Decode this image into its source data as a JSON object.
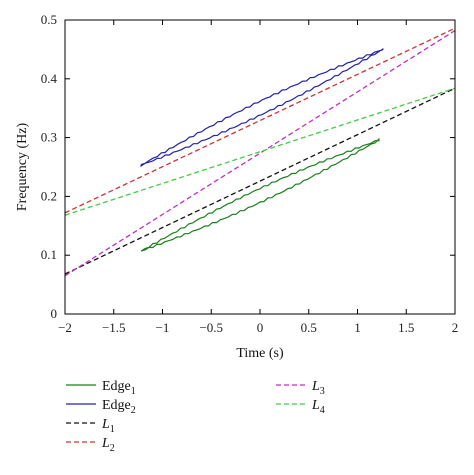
{
  "chart_data": {
    "type": "line",
    "xlabel": "Time (s)",
    "ylabel": "Frequency (Hz)",
    "xlim": [
      -2,
      2
    ],
    "ylim": [
      0,
      0.5
    ],
    "xticks": [
      -2,
      -1.5,
      -1,
      -0.5,
      0,
      0.5,
      1,
      1.5,
      2
    ],
    "yticks": [
      0,
      0.1,
      0.2,
      0.3,
      0.4,
      0.5
    ],
    "xtick_labels": [
      "−2",
      "−1.5",
      "−1",
      "−0.5",
      "0",
      "0.5",
      "1",
      "1.5",
      "2"
    ],
    "ytick_labels": [
      "0",
      "0.1",
      "0.2",
      "0.3",
      "0.4",
      "0.5"
    ],
    "grid": false,
    "legend_position": "below",
    "series": [
      {
        "name": "Edge1",
        "label_main": "Edge",
        "label_sub": "1",
        "italic": false,
        "color": "#1a7f1a",
        "style": "solid",
        "kind": "band",
        "x_start": -1.22,
        "x_end": 1.22,
        "y_start": 0.107,
        "y_end": 0.296,
        "spread": 0.012
      },
      {
        "name": "Edge2",
        "label_main": "Edge",
        "label_sub": "2",
        "italic": false,
        "color": "#2222aa",
        "style": "solid",
        "kind": "band",
        "x_start": -1.22,
        "x_end": 1.26,
        "y_start": 0.253,
        "y_end": 0.45,
        "spread": 0.012
      },
      {
        "name": "L1",
        "label_main": "L",
        "label_sub": "1",
        "italic": true,
        "color": "#111111",
        "style": "dashed",
        "kind": "line",
        "x": [
          -2,
          2
        ],
        "y": [
          0.068,
          0.384
        ]
      },
      {
        "name": "L2",
        "label_main": "L",
        "label_sub": "2",
        "italic": true,
        "color": "#cc3333",
        "style": "dashed",
        "kind": "line",
        "x": [
          -2,
          2
        ],
        "y": [
          0.172,
          0.486
        ]
      },
      {
        "name": "L3",
        "label_main": "L",
        "label_sub": "3",
        "italic": true,
        "color": "#bb33bb",
        "style": "dashed",
        "kind": "line",
        "x": [
          -2,
          2
        ],
        "y": [
          0.065,
          0.482
        ]
      },
      {
        "name": "L4",
        "label_main": "L",
        "label_sub": "4",
        "italic": true,
        "color": "#44cc44",
        "style": "dashed",
        "kind": "line",
        "x": [
          -2,
          2
        ],
        "y": [
          0.168,
          0.384
        ]
      }
    ]
  }
}
